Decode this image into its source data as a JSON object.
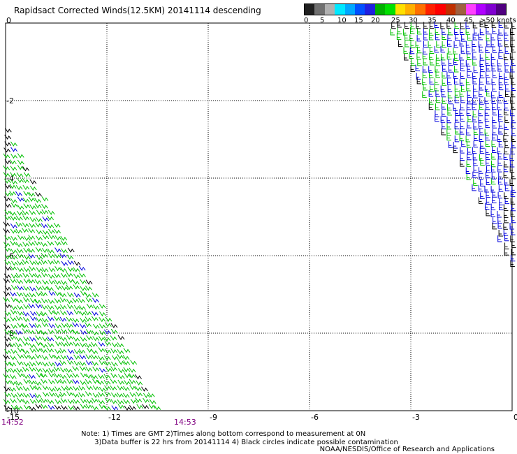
{
  "title": "Rapidsact Corrected Winds(12.5KM) 20141114 descending",
  "legend": {
    "colors": [
      "#202020",
      "#707070",
      "#b0b0b0",
      "#00e8ff",
      "#00a8ff",
      "#0050ff",
      "#2020e0",
      "#00b000",
      "#00e000",
      "#ffe000",
      "#ffb000",
      "#ff7000",
      "#ff2000",
      "#ff0000",
      "#c03000",
      "#a06040",
      "#ff40ff",
      "#b000ff",
      "#8000d0",
      "#500080"
    ],
    "labels": [
      "0",
      "5",
      "10",
      "15",
      "20",
      "25",
      "30",
      "35",
      "40",
      "45",
      ">50 knots"
    ]
  },
  "axes": {
    "x_ticks": [
      "-15",
      "-12",
      "-9",
      "-6",
      "-3",
      "0"
    ],
    "y_ticks": [
      "0",
      "-2",
      "-4",
      "-6",
      "-8",
      "-10"
    ]
  },
  "times": {
    "left": "14:52",
    "right": "14:53"
  },
  "notes": {
    "line1": "Note: 1) Times are GMT 2)Times along bottom correspond to measurement at 0N",
    "line2": "3)Data buffer is 22 hrs from 20141114 4) Black circles indicate possible contamination"
  },
  "credit": "NOAA/NESDIS/Office of Research and Applications",
  "chart_data": {
    "type": "map",
    "projection": "lon-lat",
    "xlim": [
      -15,
      0
    ],
    "ylim": [
      -10,
      0
    ],
    "wind_colors": {
      "5-15 knots": "#00c000",
      "15-20 knots": "#0000dd",
      "edge": "#000000"
    },
    "swaths": [
      {
        "name": "west",
        "polygon": [
          [
            -15,
            -2.7
          ],
          [
            -15,
            -10
          ],
          [
            -10.4,
            -10
          ]
        ]
      },
      {
        "name": "east",
        "polygon": [
          [
            -3.8,
            0
          ],
          [
            0,
            0
          ],
          [
            0,
            -6.3
          ]
        ]
      }
    ]
  }
}
